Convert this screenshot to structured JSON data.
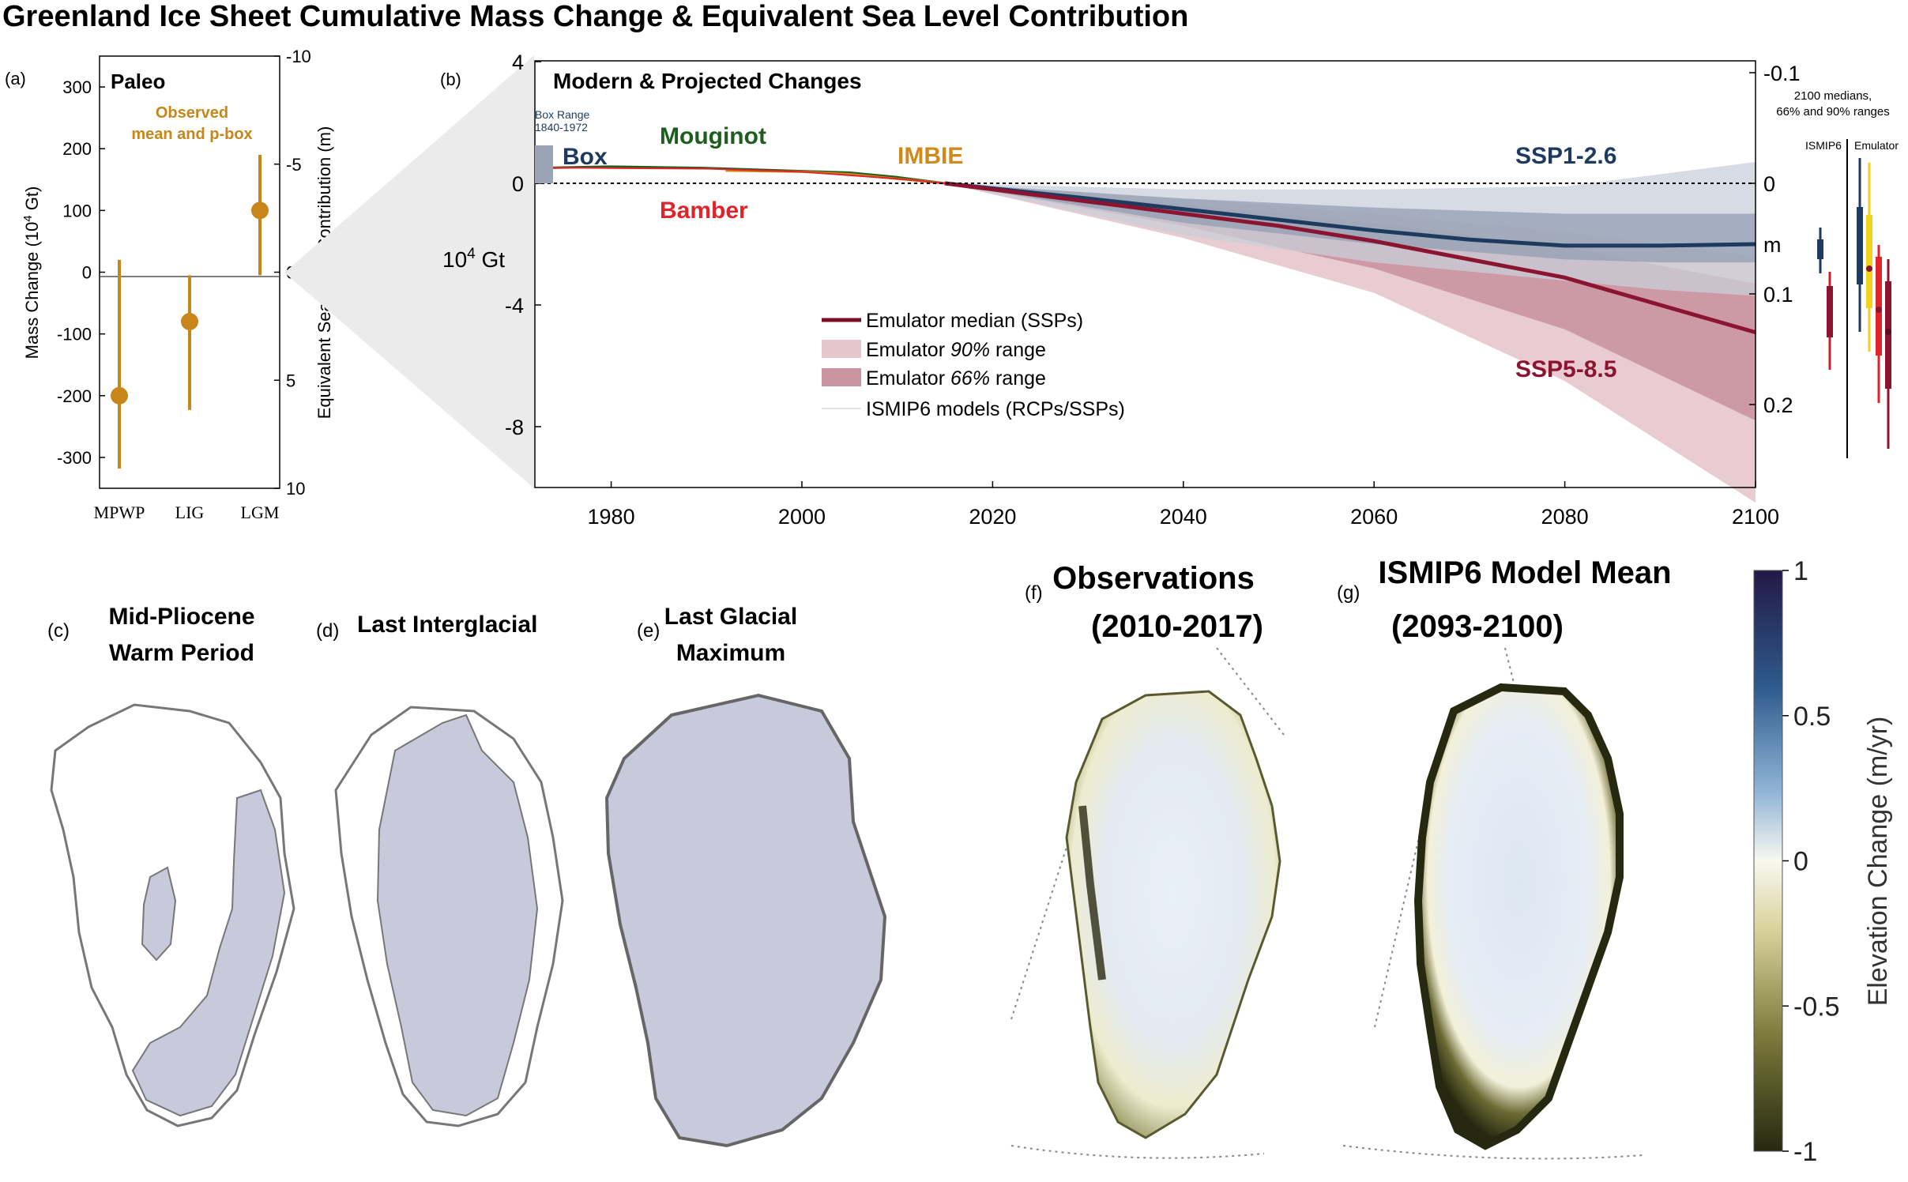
{
  "title": "Greenland Ice Sheet Cumulative Mass Change & Equivalent Sea Level Contribution",
  "colors": {
    "paleo": "#c8861a",
    "box": "#1f3a5f",
    "mouginot": "#1d5e1d",
    "imbie": "#d08a19",
    "bamber": "#e0242a",
    "ssp126": "#1f3a5f",
    "ssp585": "#8b1530",
    "icemask": "#c9c9dc",
    "cbar_pos": "#231945",
    "cbar_neg": "#262910"
  },
  "panel_a": {
    "tag": "(a)",
    "title": "Paleo",
    "legend": [
      "Observed",
      "mean and p-box"
    ],
    "ylabel_left": "Mass Change (10",
    "ylabel_left_sup": "4",
    "ylabel_left_end": " Gt)",
    "ylabel_right": "Equivalent Sea Level Contribution (m)",
    "left_ticks": [
      "300",
      "200",
      "100",
      "0",
      "-100",
      "-200",
      "-300"
    ],
    "right_ticks": [
      "-10",
      "-5",
      "0",
      "5",
      "10"
    ],
    "categories": [
      "MPWP",
      "LIG",
      "LGM"
    ]
  },
  "panel_b": {
    "tag": "(b)",
    "title": "Modern & Projected Changes",
    "box_range_line1": "Box Range",
    "box_range_line2": "1840-1972",
    "labels": {
      "box": "Box",
      "mouginot": "Mouginot",
      "imbie": "IMBIE",
      "bamber": "Bamber",
      "ssp126": "SSP1-2.6",
      "ssp585": "SSP5-8.5"
    },
    "ylabel": "10",
    "ylabel_sup": "4",
    "ylabel_end": " Gt",
    "y_ticks": [
      "4",
      "0",
      "-4",
      "-8"
    ],
    "x_ticks": [
      "1980",
      "2000",
      "2020",
      "2040",
      "2060",
      "2080",
      "2100"
    ],
    "right_ticks": [
      "-0.1",
      "0",
      "0.1",
      "0.2"
    ],
    "right_unit": "m",
    "legend": {
      "median": "Emulator median (SSPs)",
      "r90_pre": "Emulator ",
      "r90_em": "90%",
      "r90_post": " range",
      "r66_pre": "Emulator ",
      "r66_em": "66%",
      "r66_post": " range",
      "ismip": "ISMIP6 models (RCPs/SSPs)"
    },
    "inset": {
      "line1": "2100 medians,",
      "line2": "66% and 90% ranges",
      "ismip6": "ISMIP6",
      "emulator": "Emulator"
    }
  },
  "panels_map": {
    "c_tag": "(c)",
    "c_line1": "Mid-Pliocene",
    "c_line2": "Warm Period",
    "d_tag": "(d)",
    "d_line1": "Last Interglacial",
    "e_tag": "(e)",
    "e_line1": "Last Glacial",
    "e_line2": "Maximum",
    "f_tag": "(f)",
    "f_line1": "Observations",
    "f_line2": "(2010-2017)",
    "g_tag": "(g)",
    "g_line1": "ISMIP6 Model Mean",
    "g_line2": "(2093-2100)"
  },
  "colorbar": {
    "label": "Elevation Change (m/yr)",
    "ticks": [
      "1",
      "0.5",
      "0",
      "-0.5",
      "-1"
    ]
  },
  "chart_data": [
    {
      "type": "scatter",
      "panel": "a",
      "title": "Paleo",
      "categories": [
        "MPWP",
        "LIG",
        "LGM"
      ],
      "series": [
        {
          "name": "Observed mean and p-box",
          "values": [
            -200,
            -80,
            100
          ],
          "lower": [
            -318,
            -223,
            -5
          ],
          "upper": [
            20,
            -5,
            190
          ]
        }
      ],
      "ylabel": "Mass Change (10^4 Gt)",
      "y2label": "Equivalent Sea Level Contribution (m)",
      "ylim": [
        -350,
        350
      ],
      "y2lim": [
        10,
        -10
      ]
    },
    {
      "type": "line",
      "panel": "b",
      "title": "Modern & Projected Changes",
      "xlim": [
        1972,
        2100
      ],
      "ylim": [
        -11.2,
        4.2
      ],
      "ylabel": "10^4 Gt",
      "series": [
        {
          "name": "Box",
          "x": [
            1972,
            1975
          ],
          "y": [
            1.8,
            1.8
          ]
        },
        {
          "name": "Mouginot",
          "x": [
            1972,
            1980,
            1990,
            2000,
            2005,
            2010,
            2015
          ],
          "y": [
            0.5,
            0.55,
            0.5,
            0.4,
            0.35,
            0.2,
            0.0
          ]
        },
        {
          "name": "IMBIE",
          "x": [
            1992,
            2000,
            2005,
            2010,
            2015
          ],
          "y": [
            0.42,
            0.38,
            0.3,
            0.15,
            0.0
          ]
        },
        {
          "name": "Bamber",
          "x": [
            1972,
            1980,
            1990,
            2000,
            2010,
            2015
          ],
          "y": [
            0.52,
            0.5,
            0.48,
            0.38,
            0.15,
            0.0
          ]
        },
        {
          "name": "SSP1-2.6",
          "x": [
            2015,
            2030,
            2040,
            2050,
            2060,
            2070,
            2080,
            2090,
            2100
          ],
          "y": [
            0.0,
            -0.5,
            -0.85,
            -1.2,
            -1.55,
            -1.85,
            -2.05,
            -2.05,
            -2.0
          ]
        },
        {
          "name": "SSP5-8.5",
          "x": [
            2015,
            2030,
            2040,
            2050,
            2060,
            2070,
            2080,
            2090,
            2100
          ],
          "y": [
            0.0,
            -0.6,
            -1.0,
            -1.4,
            -1.9,
            -2.5,
            -3.1,
            -4.0,
            -4.9
          ]
        }
      ],
      "ssp126_r90": {
        "x": [
          2015,
          2040,
          2060,
          2080,
          2090,
          2100
        ],
        "lower": [
          0.0,
          -1.7,
          -2.6,
          -3.2,
          -3.5,
          -3.7
        ],
        "upper": [
          0.0,
          -0.2,
          -0.2,
          -0.1,
          0.3,
          0.7
        ]
      },
      "ssp126_r66": {
        "x": [
          2015,
          2040,
          2060,
          2080,
          2090,
          2100
        ],
        "lower": [
          0.0,
          -1.3,
          -2.0,
          -2.5,
          -2.6,
          -2.6
        ],
        "upper": [
          0.0,
          -0.5,
          -0.8,
          -1.0,
          -1.0,
          -1.0
        ]
      },
      "ssp585_r90": {
        "x": [
          2015,
          2040,
          2060,
          2080,
          2090,
          2100
        ],
        "lower": [
          0.0,
          -1.8,
          -3.6,
          -6.5,
          -8.5,
          -10.5
        ],
        "upper": [
          0.0,
          -0.5,
          -1.0,
          -1.6,
          -2.0,
          -2.4
        ]
      },
      "ssp585_r66": {
        "x": [
          2015,
          2040,
          2060,
          2080,
          2090,
          2100
        ],
        "lower": [
          0.0,
          -1.4,
          -2.8,
          -4.8,
          -6.3,
          -7.8
        ],
        "upper": [
          0.0,
          -0.7,
          -1.3,
          -2.1,
          -2.7,
          -3.3
        ]
      }
    }
  ]
}
